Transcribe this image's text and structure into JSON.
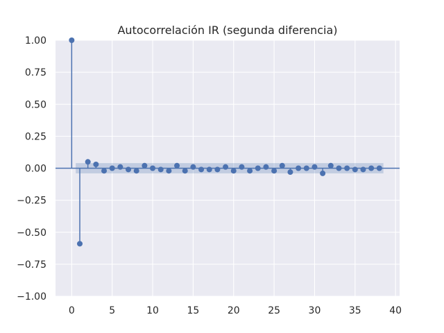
{
  "chart_data": {
    "type": "stem",
    "title": "Autocorrelación IR (segunda diferencia)",
    "xlabel": "",
    "ylabel": "",
    "xlim": [
      -2,
      40.5
    ],
    "ylim": [
      -1.0,
      1.0
    ],
    "xticks": [
      0,
      5,
      10,
      15,
      20,
      25,
      30,
      35,
      40
    ],
    "yticks": [
      -1.0,
      -0.75,
      -0.5,
      -0.25,
      0.0,
      0.25,
      0.5,
      0.75,
      1.0
    ],
    "ytick_labels": [
      "−1.00",
      "−0.75",
      "−0.50",
      "−0.25",
      "0.00",
      "0.25",
      "0.50",
      "0.75",
      "1.00"
    ],
    "xtick_labels": [
      "0",
      "5",
      "10",
      "15",
      "20",
      "25",
      "30",
      "35",
      "40"
    ],
    "grid": true,
    "confidence_band": 0.04,
    "lags": [
      0,
      1,
      2,
      3,
      4,
      5,
      6,
      7,
      8,
      9,
      10,
      11,
      12,
      13,
      14,
      15,
      16,
      17,
      18,
      19,
      20,
      21,
      22,
      23,
      24,
      25,
      26,
      27,
      28,
      29,
      30,
      31,
      32,
      33,
      34,
      35,
      36,
      37,
      38
    ],
    "values": [
      1.0,
      -0.59,
      0.05,
      0.03,
      -0.02,
      0.0,
      0.01,
      -0.01,
      -0.02,
      0.02,
      0.0,
      -0.01,
      -0.02,
      0.02,
      -0.02,
      0.01,
      -0.01,
      -0.01,
      -0.01,
      0.01,
      -0.02,
      0.01,
      -0.02,
      0.0,
      0.01,
      -0.02,
      0.02,
      -0.03,
      0.0,
      0.0,
      0.01,
      -0.04,
      0.02,
      0.0,
      0.0,
      -0.01,
      -0.01,
      0.0,
      0.0
    ],
    "colors": {
      "plot_bg": "#eaeaf2",
      "grid": "#ffffff",
      "series": "#4c72b0",
      "band": "#4c72b0",
      "text": "#262626"
    }
  }
}
